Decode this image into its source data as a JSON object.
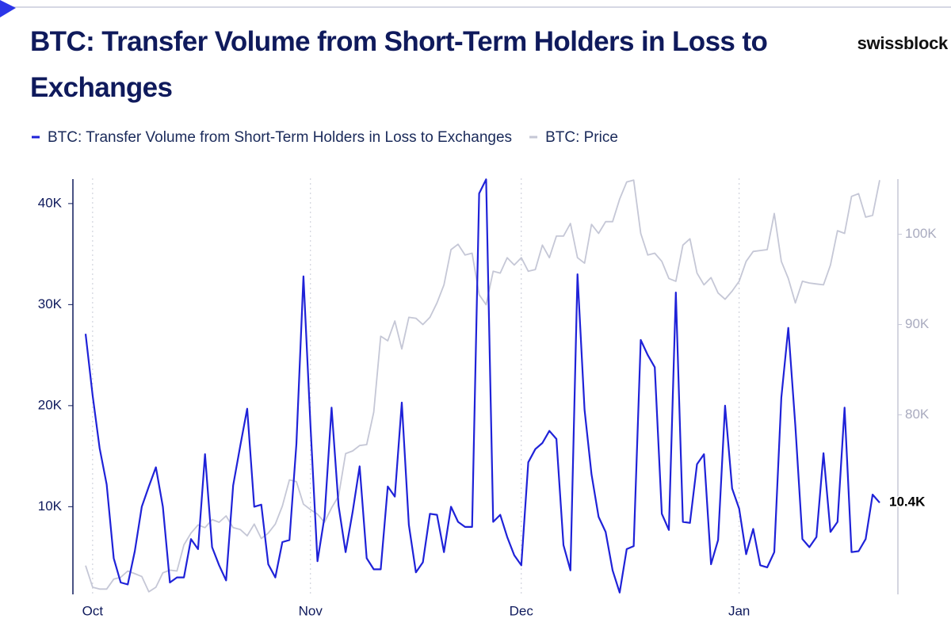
{
  "chart_data": {
    "type": "line",
    "title": "BTC: Transfer Volume from Short-Term Holders in Loss to Exchanges",
    "brand": "swissblock",
    "categories": [
      null,
      "Oct",
      null,
      null,
      null,
      null,
      null,
      null,
      null,
      null,
      null,
      null,
      null,
      null,
      null,
      null,
      null,
      null,
      null,
      null,
      null,
      null,
      null,
      null,
      null,
      null,
      null,
      null,
      null,
      null,
      null,
      null,
      "Nov",
      null,
      null,
      null,
      null,
      null,
      null,
      null,
      null,
      null,
      null,
      null,
      null,
      null,
      null,
      null,
      null,
      null,
      null,
      null,
      null,
      null,
      null,
      null,
      null,
      null,
      null,
      null,
      null,
      null,
      "Dec",
      null,
      null,
      null,
      null,
      null,
      null,
      null,
      null,
      null,
      null,
      null,
      null,
      null,
      null,
      null,
      null,
      null,
      null,
      null,
      null,
      null,
      null,
      null,
      null,
      null,
      null,
      null,
      null,
      null,
      null,
      "Jan",
      null,
      null,
      null,
      null,
      null,
      null,
      null,
      null,
      null,
      null,
      null,
      null,
      null,
      null,
      null,
      null,
      null,
      null,
      null,
      null
    ],
    "series": [
      {
        "name": "BTC: Transfer Volume from Short-Term Holders in Loss to Exchanges",
        "color": "#1f22d8",
        "values": [
          27100,
          21000,
          15800,
          12200,
          4900,
          2500,
          2300,
          5600,
          10000,
          12000,
          13900,
          10000,
          2500,
          3000,
          3000,
          6800,
          5800,
          15200,
          6000,
          4200,
          2700,
          12100,
          16000,
          19700,
          10000,
          10200,
          4300,
          3000,
          6500,
          6700,
          16200,
          32800,
          18000,
          4600,
          9000,
          19800,
          10100,
          5500,
          9500,
          14000,
          4900,
          3800,
          3800,
          12000,
          11000,
          20300,
          8200,
          3500,
          4500,
          9300,
          9200,
          5500,
          10000,
          8500,
          8000,
          8000,
          41000,
          42400,
          8500,
          9200,
          7000,
          5200,
          4200,
          14400,
          15700,
          16300,
          17500,
          16700,
          6200,
          3700,
          33000,
          19600,
          13200,
          9000,
          7500,
          3700,
          1500,
          5800,
          6100,
          26500,
          25000,
          23800,
          9300,
          7700,
          31200,
          8500,
          8400,
          14200,
          15200,
          4300,
          6700,
          20000,
          11800,
          9800,
          5300,
          7800,
          4200,
          4000,
          5500,
          20800,
          27700,
          18000,
          6800,
          6000,
          7000,
          15300,
          7500,
          8500,
          19800,
          5500,
          5600,
          6800,
          11200,
          10400
        ],
        "value_labels": [
          null,
          null,
          null,
          null,
          null,
          null,
          null,
          null,
          null,
          null,
          null,
          null,
          null,
          null,
          null,
          null,
          null,
          null,
          null,
          null,
          null,
          null,
          null,
          null,
          null,
          null,
          null,
          null,
          null,
          null,
          null,
          null,
          null,
          null,
          null,
          null,
          null,
          null,
          null,
          null,
          null,
          null,
          null,
          null,
          null,
          null,
          null,
          null,
          null,
          null,
          null,
          null,
          null,
          null,
          null,
          null,
          null,
          null,
          null,
          null,
          null,
          null,
          null,
          null,
          null,
          null,
          null,
          null,
          null,
          null,
          null,
          null,
          null,
          null,
          null,
          null,
          null,
          null,
          null,
          null,
          null,
          null,
          null,
          null,
          null,
          null,
          null,
          null,
          null,
          null,
          null,
          null,
          null,
          null,
          null,
          null,
          null,
          null,
          null,
          null,
          null,
          null,
          null,
          null,
          null,
          null,
          null,
          null,
          null,
          null,
          null,
          null,
          null,
          "10.4K"
        ]
      },
      {
        "name": "BTC: Price",
        "color": "#c5c7d6",
        "axis": "y2",
        "values": [
          63300,
          60900,
          60700,
          60700,
          61800,
          62000,
          62700,
          62400,
          62100,
          60400,
          60900,
          62500,
          62800,
          62700,
          65600,
          66900,
          67800,
          67500,
          68400,
          68100,
          68800,
          67500,
          67300,
          66600,
          67900,
          66300,
          66900,
          67900,
          69900,
          72800,
          72600,
          70100,
          69500,
          69000,
          68100,
          69700,
          71000,
          75700,
          76000,
          76600,
          76700,
          80300,
          88700,
          88200,
          90400,
          87300,
          90800,
          90700,
          90000,
          90800,
          92400,
          94400,
          98300,
          98900,
          97700,
          97900,
          93300,
          92200,
          95900,
          95700,
          97400,
          96600,
          97400,
          95900,
          96100,
          98800,
          97400,
          99800,
          99800,
          101200,
          97400,
          96800,
          101100,
          100100,
          101400,
          101400,
          103900,
          105800,
          106000,
          100100,
          97700,
          97900,
          97000,
          95100,
          94800,
          98800,
          99500,
          95700,
          94400,
          95200,
          93500,
          92800,
          93700,
          94800,
          97000,
          98100,
          98200,
          98300,
          102300,
          97000,
          95100,
          92400,
          94800,
          94600,
          94500,
          94400,
          96600,
          100400,
          100100,
          104200,
          104500,
          101900,
          102100,
          106000
        ]
      }
    ],
    "ylim": [
      1400,
      42500
    ],
    "yticks": [
      {
        "value": 10000,
        "label": "10K"
      },
      {
        "value": 20000,
        "label": "20K"
      },
      {
        "value": 30000,
        "label": "30K"
      },
      {
        "value": 40000,
        "label": "40K"
      }
    ],
    "y2lim": [
      60200,
      106200
    ],
    "y2ticks": [
      {
        "value": 80000,
        "label": "80K"
      },
      {
        "value": 90000,
        "label": "90K"
      },
      {
        "value": 100000,
        "label": "100K"
      }
    ],
    "grid": true
  }
}
